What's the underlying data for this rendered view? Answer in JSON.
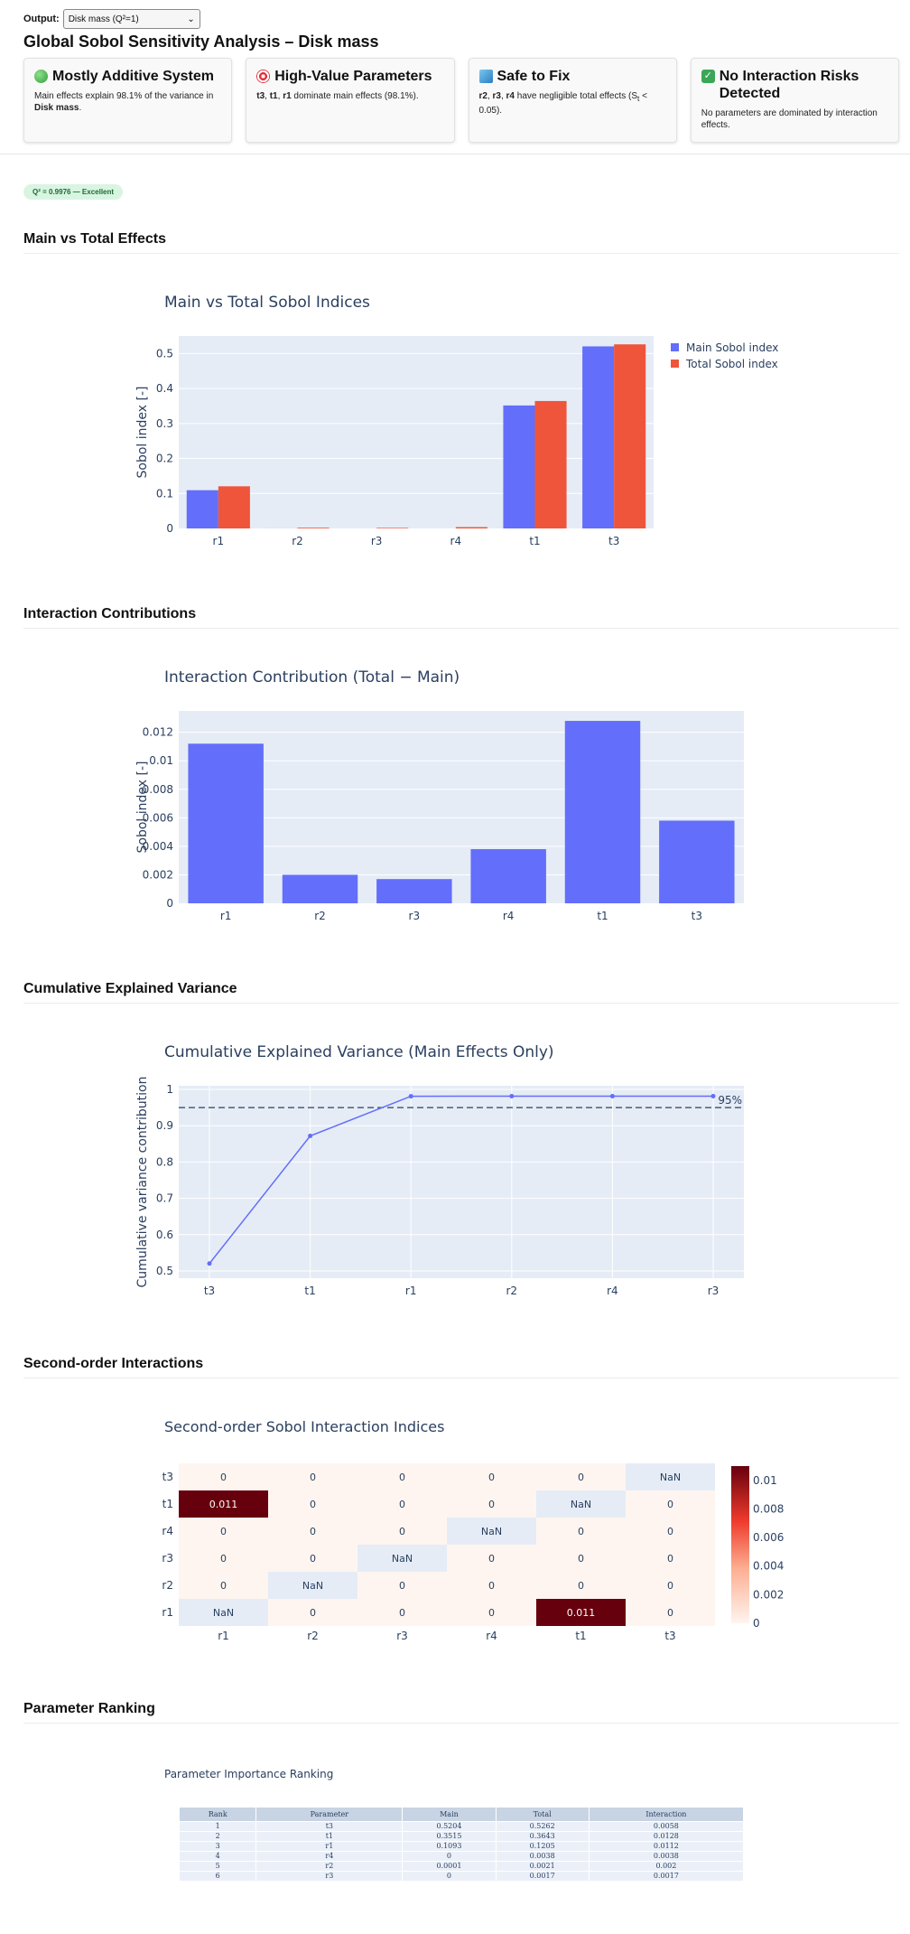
{
  "output_label": "Output:",
  "output_select": "Disk mass (Q²=1)",
  "title": "Global Sobol Sensitivity Analysis – Disk mass",
  "cards": [
    {
      "heading": "Mostly Additive System",
      "text_a": "Main effects explain 98.1% of the variance in ",
      "text_b": "Disk mass",
      "text_c": "."
    },
    {
      "heading": "High-Value Parameters",
      "text_a": "t3",
      "text_b": ", ",
      "text_c": "t1",
      "text_d": ", ",
      "text_e": "r1",
      "text_f": " dominate main effects (98.1%)."
    },
    {
      "heading": "Safe to Fix",
      "text_a": "r2",
      "text_b": ", ",
      "text_c": "r3",
      "text_d": ", ",
      "text_e": "r4",
      "text_f": " have negligible total effects (S",
      "sub": "t",
      "text_g": " < 0.05)."
    },
    {
      "heading": "No Interaction Risks Detected",
      "text_a": "No parameters are dominated by interaction effects."
    }
  ],
  "badge": "Q² = 0.9976 — Excellent",
  "sections": {
    "main_total": "Main vs Total Effects",
    "interaction": "Interaction Contributions",
    "cumulative": "Cumulative Explained Variance",
    "second_order": "Second-order Interactions",
    "ranking": "Parameter Ranking"
  },
  "chart_data": [
    {
      "type": "bar",
      "title": "Main vs Total Sobol Indices",
      "categories": [
        "r1",
        "r2",
        "r3",
        "r4",
        "t1",
        "t3"
      ],
      "series": [
        {
          "name": "Main Sobol index",
          "color": "#636efa",
          "values": [
            0.1093,
            0.0001,
            0,
            0,
            0.3515,
            0.5204
          ]
        },
        {
          "name": "Total Sobol index",
          "color": "#ef553b",
          "values": [
            0.1205,
            0.0021,
            0.0017,
            0.0038,
            0.3643,
            0.5262
          ]
        }
      ],
      "ylabel": "Sobol index [-]",
      "ylim": [
        0,
        0.55
      ],
      "yticks": [
        0,
        0.1,
        0.2,
        0.3,
        0.4,
        0.5
      ],
      "ytick_labels": [
        "0",
        "0.1",
        "0.2",
        "0.3",
        "0.4",
        "0.5"
      ],
      "legend": "top-right"
    },
    {
      "type": "bar",
      "title": "Interaction Contribution (Total − Main)",
      "categories": [
        "r1",
        "r2",
        "r3",
        "r4",
        "t1",
        "t3"
      ],
      "series": [
        {
          "name": "Interaction",
          "color": "#636efa",
          "values": [
            0.0112,
            0.002,
            0.0017,
            0.0038,
            0.0128,
            0.0058
          ]
        }
      ],
      "ylabel": "Sobol index [-]",
      "ylim": [
        0,
        0.0135
      ],
      "yticks": [
        0,
        0.002,
        0.004,
        0.006,
        0.008,
        0.01,
        0.012
      ],
      "ytick_labels": [
        "0",
        "0.002",
        "0.004",
        "0.006",
        "0.008",
        "0.01",
        "0.012"
      ]
    },
    {
      "type": "line",
      "title": "Cumulative Explained Variance (Main Effects Only)",
      "categories": [
        "t3",
        "t1",
        "r1",
        "r2",
        "r4",
        "r3"
      ],
      "values": [
        0.5204,
        0.8719,
        0.9812,
        0.9813,
        0.9813,
        0.9813
      ],
      "color": "#636efa",
      "threshold": 0.95,
      "threshold_label": "95%",
      "ylabel": "Cumulative variance contribution",
      "ylim": [
        0.48,
        1.01
      ],
      "yticks": [
        0.5,
        0.6,
        0.7,
        0.8,
        0.9,
        1
      ],
      "ytick_labels": [
        "0.5",
        "0.6",
        "0.7",
        "0.8",
        "0.9",
        "1"
      ]
    },
    {
      "type": "heatmap",
      "title": "Second-order Sobol Interaction Indices",
      "x": [
        "r1",
        "r2",
        "r3",
        "r4",
        "t1",
        "t3"
      ],
      "y": [
        "t3",
        "t1",
        "r4",
        "r3",
        "r2",
        "r1"
      ],
      "cells": [
        [
          "0",
          "0",
          "0",
          "0",
          "0",
          "NaN"
        ],
        [
          "0.011",
          "0",
          "0",
          "0",
          "NaN",
          "0"
        ],
        [
          "0",
          "0",
          "0",
          "NaN",
          "0",
          "0"
        ],
        [
          "0",
          "0",
          "NaN",
          "0",
          "0",
          "0"
        ],
        [
          "0",
          "NaN",
          "0",
          "0",
          "0",
          "0"
        ],
        [
          "NaN",
          "0",
          "0",
          "0",
          "0.011",
          "0"
        ]
      ],
      "zmin": 0,
      "zmax": 0.011,
      "colorbar_ticks": [
        0,
        0.002,
        0.004,
        0.006,
        0.008,
        0.01
      ],
      "colorbar_labels": [
        "0",
        "0.002",
        "0.004",
        "0.006",
        "0.008",
        "0.01"
      ]
    },
    {
      "type": "table",
      "title": "Parameter Importance Ranking",
      "columns": [
        "Rank",
        "Parameter",
        "Main",
        "Total",
        "Interaction"
      ],
      "rows": [
        [
          "1",
          "t3",
          "0.5204",
          "0.5262",
          "0.0058"
        ],
        [
          "2",
          "t1",
          "0.3515",
          "0.3643",
          "0.0128"
        ],
        [
          "3",
          "r1",
          "0.1093",
          "0.1205",
          "0.0112"
        ],
        [
          "4",
          "r4",
          "0",
          "0.0038",
          "0.0038"
        ],
        [
          "5",
          "r2",
          "0.0001",
          "0.0021",
          "0.002"
        ],
        [
          "6",
          "r3",
          "0",
          "0.0017",
          "0.0017"
        ]
      ]
    }
  ]
}
